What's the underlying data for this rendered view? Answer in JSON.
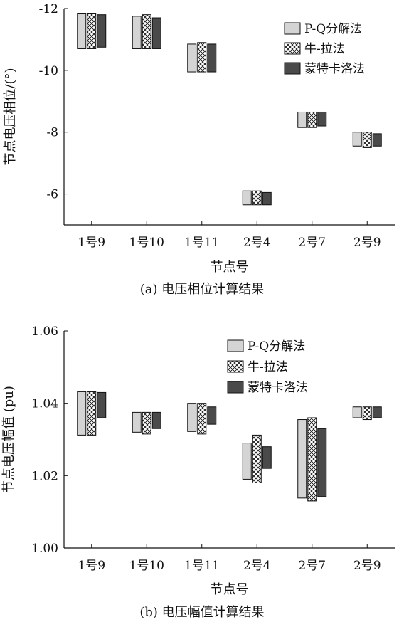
{
  "chart_data": [
    {
      "type": "bar",
      "subtype": "floating-range",
      "caption": "(a) 电压相位计算结果",
      "xlabel": "节点号",
      "ylabel": "节点电压相位/(°)",
      "ylim": [
        -5,
        -12
      ],
      "yticks": [
        -12,
        -10,
        -8,
        -6
      ],
      "yticklabels": [
        "-12",
        "-10",
        "-8",
        "-6"
      ],
      "categories": [
        "1号9",
        "1号10",
        "1号11",
        "2号4",
        "2号7",
        "2号9"
      ],
      "legend": {
        "position": "top-right"
      },
      "series": [
        {
          "name": "P-Q分解法",
          "pattern": "light",
          "ranges": [
            [
              -10.7,
              -11.85
            ],
            [
              -10.7,
              -11.75
            ],
            [
              -9.95,
              -10.85
            ],
            [
              -5.65,
              -6.1
            ],
            [
              -8.15,
              -8.65
            ],
            [
              -7.55,
              -8.0
            ]
          ]
        },
        {
          "name": "牛-拉法",
          "pattern": "crosshatch",
          "ranges": [
            [
              -10.7,
              -11.85
            ],
            [
              -10.7,
              -11.8
            ],
            [
              -9.95,
              -10.9
            ],
            [
              -5.65,
              -6.1
            ],
            [
              -8.15,
              -8.65
            ],
            [
              -7.5,
              -8.0
            ]
          ]
        },
        {
          "name": "蒙特卡洛法",
          "pattern": "dark",
          "ranges": [
            [
              -10.75,
              -11.8
            ],
            [
              -10.7,
              -11.7
            ],
            [
              -9.95,
              -10.85
            ],
            [
              -5.65,
              -6.05
            ],
            [
              -8.2,
              -8.65
            ],
            [
              -7.55,
              -7.95
            ]
          ]
        }
      ]
    },
    {
      "type": "bar",
      "subtype": "floating-range",
      "caption": "(b) 电压幅值计算结果",
      "xlabel": "节点号",
      "ylabel": "节点电压幅值 (pu)",
      "ylim": [
        1.0,
        1.06
      ],
      "yticks": [
        1.0,
        1.02,
        1.04,
        1.06
      ],
      "yticklabels": [
        "1.00",
        "1.02",
        "1.04",
        "1.06"
      ],
      "categories": [
        "1号9",
        "1号10",
        "1号11",
        "2号4",
        "2号7",
        "2号9"
      ],
      "legend": {
        "position": "top-right"
      },
      "series": [
        {
          "name": "P-Q分解法",
          "pattern": "light",
          "ranges": [
            [
              1.0312,
              1.0432
            ],
            [
              1.032,
              1.0375
            ],
            [
              1.0322,
              1.04
            ],
            [
              1.019,
              1.029
            ],
            [
              1.0138,
              1.0355
            ],
            [
              1.036,
              1.039
            ]
          ]
        },
        {
          "name": "牛-拉法",
          "pattern": "crosshatch",
          "ranges": [
            [
              1.0312,
              1.0432
            ],
            [
              1.0315,
              1.0375
            ],
            [
              1.0315,
              1.04
            ],
            [
              1.018,
              1.0312
            ],
            [
              1.013,
              1.036
            ],
            [
              1.0355,
              1.039
            ]
          ]
        },
        {
          "name": "蒙特卡洛法",
          "pattern": "dark",
          "ranges": [
            [
              1.036,
              1.043
            ],
            [
              1.033,
              1.0375
            ],
            [
              1.0342,
              1.039
            ],
            [
              1.022,
              1.028
            ],
            [
              1.0142,
              1.033
            ],
            [
              1.036,
              1.039
            ]
          ]
        }
      ]
    }
  ]
}
